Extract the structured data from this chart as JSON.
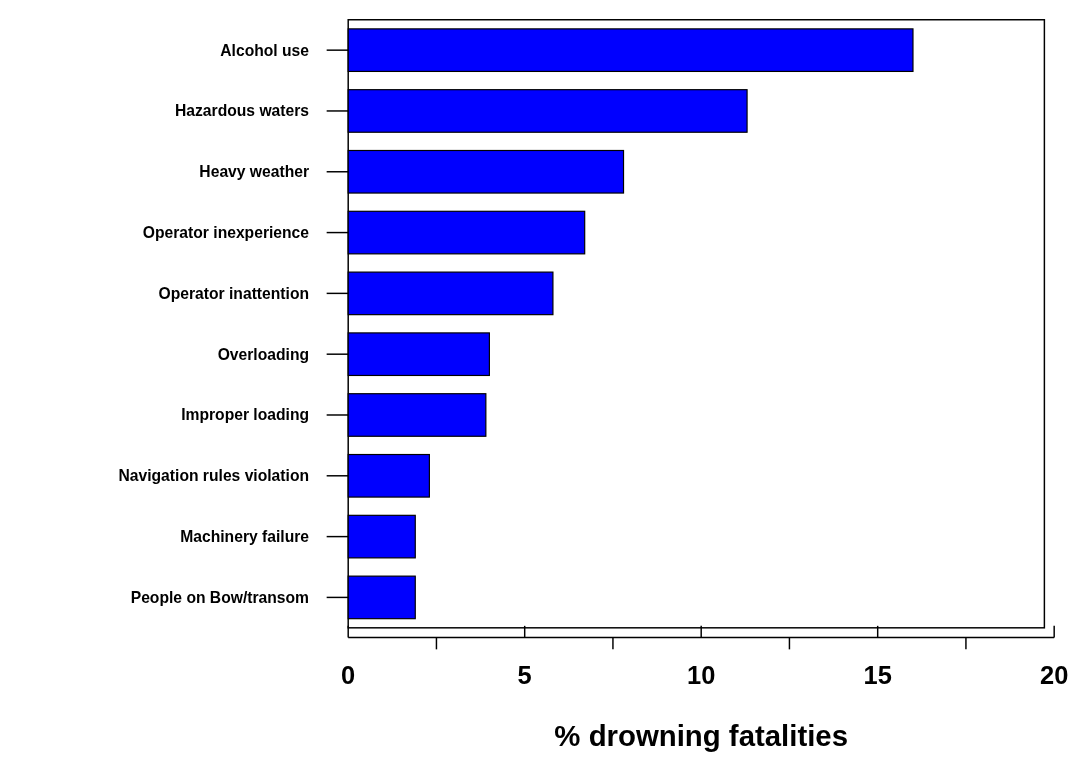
{
  "chart_data": {
    "type": "bar",
    "orientation": "horizontal",
    "xlabel": "% drowning fatalities",
    "categories": [
      "Alcohol use",
      "Hazardous waters",
      "Heavy weather",
      "Operator inexperience",
      "Operator inattention",
      "Overloading",
      "Improper loading",
      "Navigation rules violation",
      "Machinery failure",
      "People on Bow/transom"
    ],
    "values": [
      16.0,
      11.3,
      7.8,
      6.7,
      5.8,
      4.0,
      3.9,
      2.3,
      1.9,
      1.9
    ],
    "color": "#0000ff",
    "xlim": [
      0,
      20
    ],
    "xticks": [
      0,
      {
        "value": 2.5,
        "label": null
      },
      5,
      {
        "value": 7.5,
        "label": null
      },
      10,
      {
        "value": 12.5,
        "label": null
      },
      15,
      {
        "value": 17.5,
        "label": null
      },
      20
    ],
    "grid": false
  }
}
